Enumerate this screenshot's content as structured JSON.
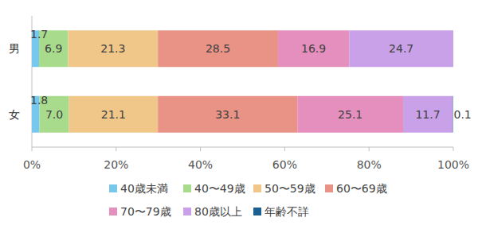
{
  "chart_data": {
    "type": "bar",
    "orientation": "horizontal",
    "stacked": true,
    "data_labels": true,
    "grid": false,
    "legend": "bottom",
    "categories": [
      "男",
      "女"
    ],
    "xlim": [
      0,
      100
    ],
    "xticks": [
      {
        "value": 0,
        "label": "0%"
      },
      {
        "value": 20,
        "label": "20%"
      },
      {
        "value": 40,
        "label": "40%"
      },
      {
        "value": 60,
        "label": "60%"
      },
      {
        "value": 80,
        "label": "80%"
      },
      {
        "value": 100,
        "label": "100%"
      }
    ],
    "series": [
      {
        "name": "40歳未満",
        "color": "#77c8ee",
        "values": [
          1.7,
          1.8
        ],
        "value_labels": [
          "1.7",
          "1.8"
        ]
      },
      {
        "name": "40〜49歳",
        "color": "#a8dc8c",
        "values": [
          6.9,
          7.0
        ],
        "value_labels": [
          "6.9",
          "7.0"
        ]
      },
      {
        "name": "50〜59歳",
        "color": "#f0c689",
        "values": [
          21.3,
          21.1
        ],
        "value_labels": [
          "21.3",
          "21.1"
        ]
      },
      {
        "name": "60〜69歳",
        "color": "#e89385",
        "values": [
          28.5,
          33.1
        ],
        "value_labels": [
          "28.5",
          "33.1"
        ]
      },
      {
        "name": "70〜79歳",
        "color": "#e58fbe",
        "values": [
          16.9,
          25.1
        ],
        "value_labels": [
          "16.9",
          "25.1"
        ]
      },
      {
        "name": "80歳以上",
        "color": "#c9a1e8",
        "values": [
          24.7,
          11.7
        ],
        "value_labels": [
          "24.7",
          "11.7"
        ]
      },
      {
        "name": "年齢不詳",
        "color": "#1b6090",
        "values": [
          null,
          0.1
        ],
        "value_labels": [
          null,
          "0.1"
        ]
      }
    ]
  }
}
